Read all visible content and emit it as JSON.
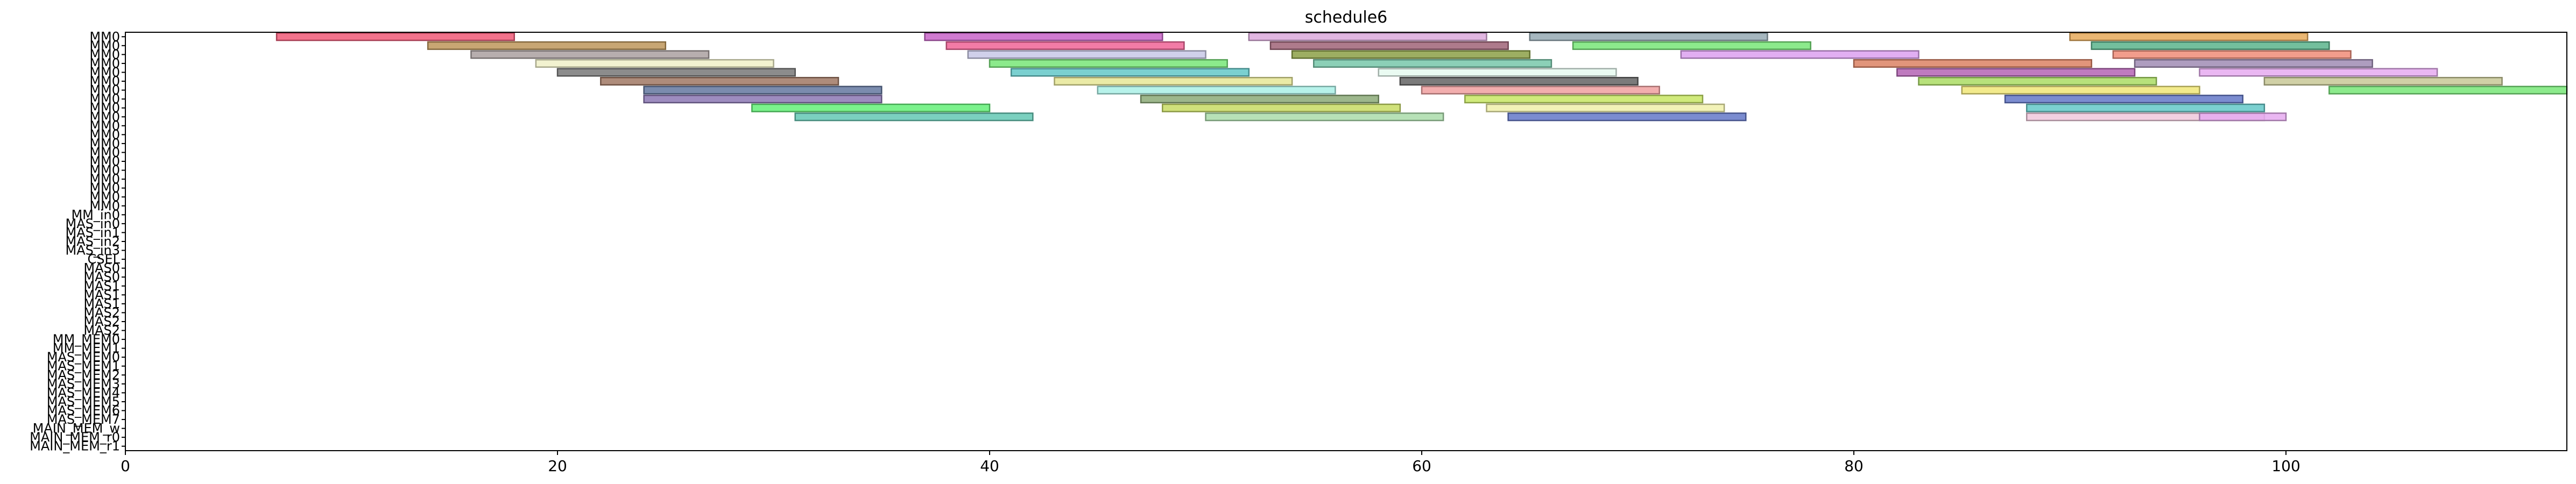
{
  "chart_data": {
    "type": "gantt",
    "title": "schedule6",
    "xlim": [
      0,
      113
    ],
    "x_ticks": [
      0,
      20,
      40,
      60,
      80,
      100
    ],
    "grid": false,
    "rows": [
      "MM0",
      "MM0",
      "MM0",
      "MM0",
      "MM0",
      "MM0",
      "MM0",
      "MM0",
      "MM0",
      "MM0",
      "MM0",
      "MM0",
      "MM0",
      "MM0",
      "MM0",
      "MM0",
      "MM0",
      "MM0",
      "MM0",
      "MM0",
      "MM_in0",
      "MAS_in0",
      "MAS_in1",
      "MAS_in2",
      "MAS_in3",
      "CSEL",
      "MAS0",
      "MAS0",
      "MAS1",
      "MAS1",
      "MAS1",
      "MAS2",
      "MAS2",
      "MAS2",
      "MM_MEM0",
      "MM_MEM1",
      "MAS_MEM0",
      "MAS_MEM1",
      "MAS_MEM2",
      "MAS_MEM3",
      "MAS_MEM4",
      "MAS_MEM5",
      "MAS_MEM6",
      "MAS_MEM7",
      "MAIN_MEM_w",
      "MAIN_MEM_r0",
      "MAIN_MEM_r1"
    ],
    "tasks": [
      {
        "row": 0,
        "start": 7,
        "end": 18,
        "color": "#f05a78"
      },
      {
        "row": 0,
        "start": 37,
        "end": 48,
        "color": "#c864c8"
      },
      {
        "row": 0,
        "start": 52,
        "end": 63,
        "color": "#dcaadc"
      },
      {
        "row": 0,
        "start": 65,
        "end": 76,
        "color": "#96aab4"
      },
      {
        "row": 0,
        "start": 90,
        "end": 101,
        "color": "#e6aa5a"
      },
      {
        "row": 1,
        "start": 14,
        "end": 25,
        "color": "#be965a"
      },
      {
        "row": 1,
        "start": 38,
        "end": 49,
        "color": "#f06496"
      },
      {
        "row": 1,
        "start": 53,
        "end": 64,
        "color": "#a06478"
      },
      {
        "row": 1,
        "start": 67,
        "end": 78,
        "color": "#78e678"
      },
      {
        "row": 1,
        "start": 91,
        "end": 102,
        "color": "#5ab48c"
      },
      {
        "row": 2,
        "start": 16,
        "end": 27,
        "color": "#aaa0a0"
      },
      {
        "row": 2,
        "start": 39,
        "end": 50,
        "color": "#c8c8e6"
      },
      {
        "row": 2,
        "start": 54,
        "end": 65,
        "color": "#8ca046"
      },
      {
        "row": 2,
        "start": 72,
        "end": 83,
        "color": "#dca0f0"
      },
      {
        "row": 2,
        "start": 92,
        "end": 103,
        "color": "#f08c78"
      },
      {
        "row": 3,
        "start": 19,
        "end": 30,
        "color": "#f0f0c8"
      },
      {
        "row": 3,
        "start": 40,
        "end": 51,
        "color": "#78e678"
      },
      {
        "row": 3,
        "start": 55,
        "end": 66,
        "color": "#78c8aa"
      },
      {
        "row": 3,
        "start": 80,
        "end": 91,
        "color": "#dc8264"
      },
      {
        "row": 3,
        "start": 93,
        "end": 104,
        "color": "#a08cb4"
      },
      {
        "row": 4,
        "start": 20,
        "end": 31,
        "color": "#787878"
      },
      {
        "row": 4,
        "start": 41,
        "end": 52,
        "color": "#64c8c8"
      },
      {
        "row": 4,
        "start": 58,
        "end": 69,
        "color": "#e6faf0"
      },
      {
        "row": 4,
        "start": 82,
        "end": 93,
        "color": "#b464b4"
      },
      {
        "row": 4,
        "start": 96,
        "end": 107,
        "color": "#e6aaf0"
      },
      {
        "row": 5,
        "start": 22,
        "end": 33,
        "color": "#a07864"
      },
      {
        "row": 5,
        "start": 43,
        "end": 54,
        "color": "#e6e696"
      },
      {
        "row": 5,
        "start": 59,
        "end": 70,
        "color": "#646464"
      },
      {
        "row": 5,
        "start": 83,
        "end": 94,
        "color": "#aadc64"
      },
      {
        "row": 5,
        "start": 99,
        "end": 110,
        "color": "#c8c896"
      },
      {
        "row": 6,
        "start": 24,
        "end": 35,
        "color": "#6478a0"
      },
      {
        "row": 6,
        "start": 45,
        "end": 56,
        "color": "#aaf0e6"
      },
      {
        "row": 6,
        "start": 60,
        "end": 71,
        "color": "#f0a0a0"
      },
      {
        "row": 6,
        "start": 85,
        "end": 96,
        "color": "#f0e678"
      },
      {
        "row": 6,
        "start": 102,
        "end": 113,
        "color": "#78e678"
      },
      {
        "row": 7,
        "start": 24,
        "end": 35,
        "color": "#8c78b4"
      },
      {
        "row": 7,
        "start": 47,
        "end": 58,
        "color": "#8caa78"
      },
      {
        "row": 7,
        "start": 62,
        "end": 73,
        "color": "#c8e664"
      },
      {
        "row": 7,
        "start": 87,
        "end": 98,
        "color": "#6478c8"
      },
      {
        "row": 8,
        "start": 29,
        "end": 40,
        "color": "#64f078"
      },
      {
        "row": 8,
        "start": 48,
        "end": 59,
        "color": "#c8dc64"
      },
      {
        "row": 8,
        "start": 63,
        "end": 74,
        "color": "#f0f0aa"
      },
      {
        "row": 8,
        "start": 88,
        "end": 99,
        "color": "#64c8c8"
      },
      {
        "row": 9,
        "start": 31,
        "end": 42,
        "color": "#64c8b4"
      },
      {
        "row": 9,
        "start": 50,
        "end": 61,
        "color": "#aadcaa"
      },
      {
        "row": 9,
        "start": 64,
        "end": 75,
        "color": "#6478c8"
      },
      {
        "row": 9,
        "start": 88,
        "end": 99,
        "color": "#f0c8dc"
      },
      {
        "row": 9,
        "start": 96,
        "end": 100,
        "color": "#e6aaf0"
      }
    ]
  }
}
